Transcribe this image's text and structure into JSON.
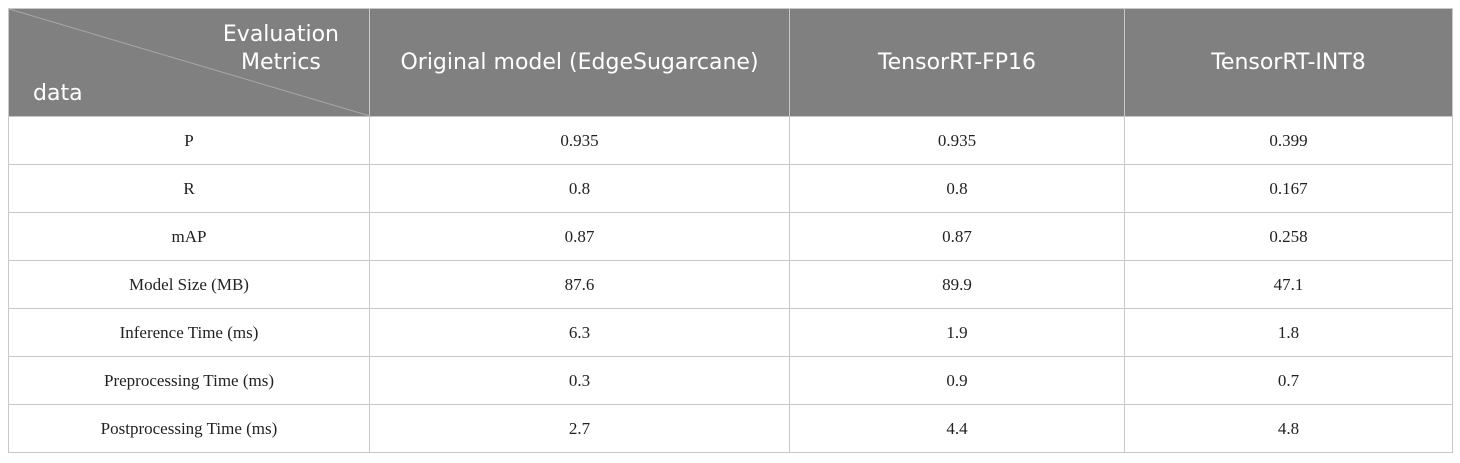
{
  "table": {
    "corner_header": {
      "top_line1": "Evaluation",
      "top_line2": "Metrics",
      "bottom": "data"
    },
    "columns": [
      "Original model (EdgeSugarcane)",
      "TensorRT-FP16",
      "TensorRT-INT8"
    ],
    "rows": [
      {
        "label": "P",
        "values": [
          "0.935",
          "0.935",
          "0.399"
        ]
      },
      {
        "label": "R",
        "values": [
          "0.8",
          "0.8",
          "0.167"
        ]
      },
      {
        "label": "mAP",
        "values": [
          "0.87",
          "0.87",
          "0.258"
        ]
      },
      {
        "label": "Model Size (MB)",
        "values": [
          "87.6",
          "89.9",
          "47.1"
        ]
      },
      {
        "label": "Inference Time (ms)",
        "values": [
          "6.3",
          "1.9",
          "1.8"
        ]
      },
      {
        "label": "Preprocessing Time (ms)",
        "values": [
          "0.3",
          "0.9",
          "0.7"
        ]
      },
      {
        "label": "Postprocessing Time (ms)",
        "values": [
          "2.7",
          "4.4",
          "4.8"
        ]
      }
    ],
    "colors": {
      "header_background": "#808080",
      "header_text": "#ffffff",
      "grid_line": "#c8c8c8"
    }
  }
}
